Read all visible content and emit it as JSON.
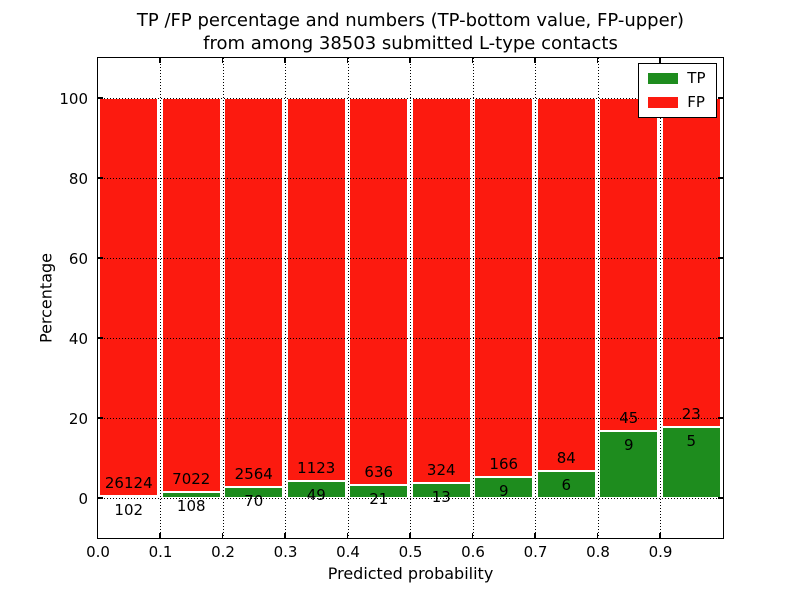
{
  "figure": {
    "title_line1": "TP /FP percentage and numbers (TP-bottom value, FP-upper)",
    "title_line2": "from among 38503 submitted L-type contacts",
    "xlabel": "Predicted probability",
    "ylabel": "Percentage"
  },
  "chart_data": {
    "type": "bar",
    "stacked": true,
    "normalized_to_percent": true,
    "title": "TP /FP percentage and numbers (TP-bottom value, FP-upper) from among 38503 submitted L-type contacts",
    "xlabel": "Predicted probability",
    "ylabel": "Percentage",
    "total_contacts": 38503,
    "bin_starts": [
      0.0,
      0.1,
      0.2,
      0.3,
      0.4,
      0.5,
      0.6,
      0.7,
      0.8,
      0.9
    ],
    "bin_width": 0.1,
    "bar_visual_width": 0.095,
    "x_tick_labels": [
      "0.0",
      "0.1",
      "0.2",
      "0.3",
      "0.4",
      "0.5",
      "0.6",
      "0.7",
      "0.8",
      "0.9"
    ],
    "y_tick_values": [
      0,
      20,
      40,
      60,
      80,
      100
    ],
    "y_tick_labels": [
      "0",
      "20",
      "40",
      "60",
      "80",
      "100"
    ],
    "xlim": [
      0,
      1.0
    ],
    "ylim": [
      -10,
      110
    ],
    "grid": "dotted-black-over-bars",
    "series": [
      {
        "name": "TP",
        "color": "#1e8c1e",
        "position": "bottom",
        "counts": [
          102,
          108,
          70,
          49,
          21,
          13,
          9,
          6,
          9,
          5
        ]
      },
      {
        "name": "FP",
        "color": "#fc1a0f",
        "position": "top",
        "counts": [
          26124,
          7022,
          2564,
          1123,
          636,
          324,
          166,
          84,
          45,
          23
        ]
      }
    ],
    "legend": {
      "position": "upper right",
      "entries": [
        {
          "label": "TP",
          "color": "#1e8c1e"
        },
        {
          "label": "FP",
          "color": "#fc1a0f"
        }
      ]
    }
  }
}
